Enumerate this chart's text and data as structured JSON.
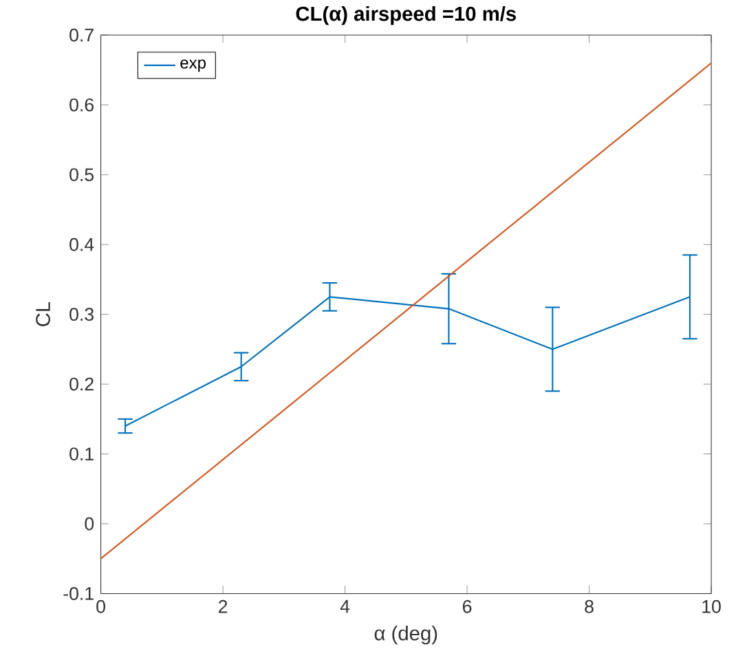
{
  "chart_data": {
    "type": "line",
    "title": "CL(α) airspeed =10 m/s",
    "xlabel": "α (deg)",
    "ylabel": "CL",
    "x": [
      0.4,
      2.3,
      3.75,
      5.7,
      7.4,
      9.65
    ],
    "series": [
      {
        "name": "exp",
        "color": "#0072bd",
        "values": [
          0.14,
          0.225,
          0.325,
          0.308,
          0.25,
          0.325
        ],
        "errors": [
          0.01,
          0.02,
          0.02,
          0.05,
          0.06,
          0.06
        ]
      },
      {
        "type": "line",
        "color": "#d95319",
        "x": [
          0,
          10
        ],
        "values": [
          -0.05,
          0.66
        ]
      }
    ],
    "xlim": [
      0,
      10
    ],
    "ylim": [
      -0.1,
      0.7
    ],
    "xticks": [
      0,
      2,
      4,
      6,
      8,
      10
    ],
    "yticks": [
      -0.1,
      0,
      0.1,
      0.2,
      0.3,
      0.4,
      0.5,
      0.6,
      0.7
    ],
    "legend": "top left",
    "grid": false,
    "marker": "none",
    "line_style": "solid"
  }
}
